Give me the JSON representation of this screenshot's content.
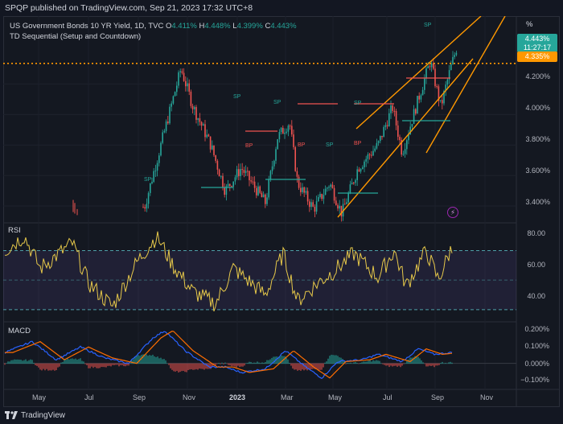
{
  "header": {
    "publish_line": "SPQP published on TradingView.com, Sep 21, 2023 17:32 UTC+8"
  },
  "legend": {
    "symbol_line": "US Government Bonds 10 YR Yield, 1D, TVC",
    "open_label": "O",
    "open_value": "4.411%",
    "high_label": "H",
    "high_value": "4.448%",
    "low_label": "L",
    "low_value": "4.399%",
    "close_label": "C",
    "close_value": "4.443%",
    "indicator": "TD Sequential (Setup and Countdown)"
  },
  "price_axis": {
    "unit_label": "%",
    "ticks": [
      "4.200%",
      "4.000%",
      "3.800%",
      "3.600%",
      "3.400%"
    ],
    "last_price": "4.443%",
    "countdown": "11:27:17",
    "level_price": "4.335%"
  },
  "rsi_pane": {
    "label": "RSI",
    "ticks": [
      "80.00",
      "60.00",
      "40.00"
    ]
  },
  "macd_pane": {
    "label": "MACD",
    "ticks": [
      "0.200%",
      "0.100%",
      "0.000%",
      "−0.100%"
    ]
  },
  "time_axis": {
    "labels": [
      "May",
      "Jul",
      "Sep",
      "Nov",
      "2023",
      "Mar",
      "May",
      "Jul",
      "Sep",
      "Nov"
    ]
  },
  "footer": {
    "brand": "TradingView"
  },
  "colors": {
    "background": "#131722",
    "up": "#26a69a",
    "down": "#ef5350",
    "rsi_line": "#e6c84a",
    "channel": "#ff9800",
    "level_line": "#ff9800",
    "macd": "#2962ff",
    "signal": "#ff6d00"
  },
  "chart_data": [
    {
      "type": "candlestick",
      "title": "US Government Bonds 10 YR Yield, 1D, TVC",
      "x_range": [
        "Apr 2022",
        "Dec 2023"
      ],
      "y_range": [
        3.3,
        4.55
      ],
      "x": [
        "Apr 2022",
        "Jun 2022",
        "Aug 2022",
        "Oct 2022",
        "Nov 2022",
        "Jan 2023",
        "Feb 2023",
        "Mar 2023",
        "Apr 2023",
        "May 2023",
        "Jun 2023",
        "Jul 2023",
        "Aug 2023",
        "Sep 2023"
      ],
      "close_approx": [
        3.36,
        3.41,
        3.33,
        4.2,
        3.75,
        3.5,
        3.95,
        3.4,
        3.42,
        3.6,
        3.8,
        3.9,
        4.2,
        4.443
      ],
      "horizontal_level": 4.335,
      "annotations": [
        "SP",
        "BP"
      ]
    },
    {
      "type": "line",
      "title": "RSI",
      "y_range": [
        25,
        85
      ],
      "bands": [
        70,
        30
      ],
      "last_value": 70
    },
    {
      "type": "bar",
      "title": "MACD",
      "y_range": [
        -0.13,
        0.22
      ],
      "series": [
        {
          "name": "MACD"
        },
        {
          "name": "Signal"
        }
      ]
    }
  ]
}
